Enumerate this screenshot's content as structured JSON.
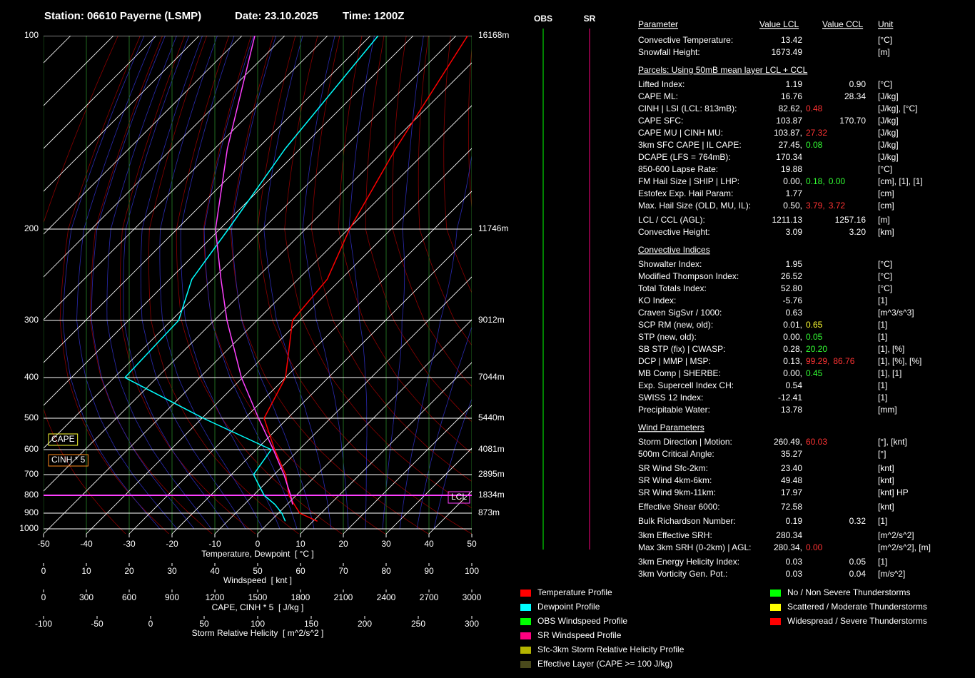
{
  "header": {
    "station": "Station: 06610 Payerne (LSMP)",
    "date": "Date: 23.10.2025",
    "time": "Time: 1200Z"
  },
  "chart_data": {
    "type": "skew-t",
    "xlabel": "Temperature, Dewpoint  [ °C ]",
    "xlim": [
      -50,
      50
    ],
    "xticks": [
      -50,
      -40,
      -30,
      -20,
      -10,
      0,
      10,
      20,
      30,
      40,
      50
    ],
    "ylim": [
      100,
      1000
    ],
    "yticks": [
      100,
      200,
      300,
      400,
      500,
      600,
      700,
      800,
      900,
      1000
    ],
    "height_labels": [
      "16168m",
      "11746m",
      "9012m",
      "7044m",
      "5440m",
      "4081m",
      "2895m",
      "1834m",
      "873m"
    ],
    "y": [
      950,
      900,
      850,
      800,
      700,
      600,
      500,
      400,
      300,
      250,
      200,
      150,
      100
    ],
    "series": [
      {
        "name": "Temperature Profile",
        "color": "#ff0000",
        "values": [
          11,
          5,
          1.7,
          -1.7,
          -7.3,
          -15.7,
          -25.5,
          -30,
          -41.7,
          -43.2,
          -49.7,
          -57.7,
          -67.3
        ]
      },
      {
        "name": "Dewpoint Profile",
        "color": "#00ffff",
        "values": [
          3.5,
          0.8,
          -2.8,
          -7.5,
          -14.8,
          -16.5,
          -39.7,
          -67.5,
          -68.3,
          -74.8,
          -78,
          -83.5,
          -88.2
        ]
      },
      {
        "color": "#ff40ff",
        "values": [
          null,
          null,
          1.3,
          -1.3,
          -7.7,
          -16,
          -26.8,
          -40.3,
          -57,
          -68,
          -81,
          -97,
          -117
        ]
      }
    ],
    "windspeed_axis": {
      "label": "Windspeed  [ knt ]",
      "xlim": [
        0,
        100
      ],
      "xticks": [
        0,
        10,
        20,
        30,
        40,
        50,
        60,
        70,
        80,
        90,
        100
      ]
    },
    "cape_axis": {
      "label": "CAPE, CINH * 5  [ J/kg ]",
      "xlim": [
        0,
        3000
      ],
      "xticks": [
        0,
        300,
        600,
        900,
        1200,
        1500,
        1800,
        2100,
        2400,
        2700,
        3000
      ]
    },
    "srh_axis": {
      "label": "Storm Relative Helicity  [ m^2/s^2 ]",
      "xlim": [
        -100,
        300
      ],
      "xticks": [
        -100,
        -50,
        0,
        50,
        100,
        150,
        200,
        250,
        300
      ]
    },
    "annotations": [
      "CAPE",
      "CINH * 5",
      "LCL"
    ],
    "wind_headings": [
      "OBS",
      "SR"
    ],
    "legend_items": [
      {
        "name": "OBS Windspeed Profile",
        "color": "#00ff00"
      },
      {
        "name": "SR Windspeed Profile",
        "color": "#ff0080"
      },
      {
        "name": "Sfc-3km Storm Relative Helicity Profile",
        "color": "#b4b400"
      },
      {
        "name": "Effective Layer (CAPE >= 100 J/kg)",
        "color": "#4a4a1c"
      }
    ],
    "severity_legend": [
      {
        "name": "No / Non Severe Thunderstorms",
        "color": "#00ff00"
      },
      {
        "name": "Scattered / Moderate Thunderstorms",
        "color": "#ffff00"
      },
      {
        "name": "Widespread / Severe Thunderstorms",
        "color": "#ff0000"
      }
    ]
  },
  "table": {
    "headers": [
      "Parameter",
      "Value LCL",
      "Value CCL",
      "Unit"
    ],
    "rows": [
      {
        "label": "Convective Temperature:",
        "lcl": [
          {
            "text": "13.42",
            "color": "#33ff33"
          }
        ],
        "unit": "[°C]"
      },
      {
        "label": "Snowfall Height:",
        "lcl": [
          {
            "text": "1673.49",
            "color": "#ffffff"
          }
        ],
        "unit": "[m]"
      },
      {
        "section": "Parcels: Using 50mB mean layer LCL + CCL"
      },
      {
        "label": "Lifted Index:",
        "lcl": [
          {
            "text": "1.19",
            "color": "#ffff33"
          }
        ],
        "ccl": {
          "text": "0.90",
          "color": "#ffff33"
        },
        "unit": "[°C]"
      },
      {
        "label": "CAPE ML:",
        "lcl": [
          {
            "text": "16.76",
            "color": "#33ff33"
          }
        ],
        "ccl": {
          "text": "28.34",
          "color": "#33ff33"
        },
        "unit": "[J/kg]"
      },
      {
        "label": "CINH | LSI (LCL: 813mB):",
        "lcl": [
          {
            "text": "82.62,",
            "color": "#ffff33"
          },
          {
            "text": "0.48",
            "color": "#ff3333"
          }
        ],
        "unit": "[J/kg], [°C]"
      },
      {
        "label": "CAPE SFC:",
        "lcl": [
          {
            "text": "103.87",
            "color": "#33ff33"
          }
        ],
        "ccl": {
          "text": "170.70",
          "color": "#33ff33"
        },
        "unit": "[J/kg]"
      },
      {
        "label": "CAPE MU | CINH MU:",
        "lcl": [
          {
            "text": "103.87,",
            "color": "#33ff33"
          },
          {
            "text": "27.32",
            "color": "#ff3333"
          }
        ],
        "unit": "[J/kg]"
      },
      {
        "label": "3km SFC CAPE | IL CAPE:",
        "lcl": [
          {
            "text": "27.45,",
            "color": "#ffff33"
          },
          {
            "text": "0.08",
            "color": "#33ff33"
          }
        ],
        "unit": "[J/kg]"
      },
      {
        "label": "DCAPE (LFS = 764mB):",
        "lcl": [
          {
            "text": "170.34",
            "color": "#33ff33"
          }
        ],
        "unit": "[J/kg]"
      },
      {
        "label": "850-600 Lapse Rate:",
        "lcl": [
          {
            "text": "19.88",
            "color": "#ff3333"
          }
        ],
        "unit": "[°C]"
      },
      {
        "label": "FM Hail Size | SHIP | LHP:",
        "lcl": [
          {
            "text": "0.00,",
            "color": "#33ff33"
          },
          {
            "text": "0.18,",
            "color": "#33ff33"
          },
          {
            "text": "0.00",
            "color": "#33ff33"
          }
        ],
        "unit": "[cm], [1], [1]"
      },
      {
        "label": "Estofex Exp. Hail Param:",
        "lcl": [
          {
            "text": "1.77",
            "color": "#ffff33"
          }
        ],
        "unit": "[cm]"
      },
      {
        "label": "Max. Hail Size (OLD, MU, IL):",
        "lcl": [
          {
            "text": "0.50,",
            "color": "#33ff33"
          },
          {
            "text": "3.79,",
            "color": "#ff3333"
          },
          {
            "text": "3.72",
            "color": "#ff3333"
          }
        ],
        "unit": "[cm]"
      },
      {
        "label": "LCL / CCL (AGL):",
        "lcl": [
          {
            "text": "1211.13",
            "color": "#ffff33"
          }
        ],
        "ccl": {
          "text": "1257.16",
          "color": "#ffff33"
        },
        "unit": "[m]"
      },
      {
        "label": "Convective Height:",
        "lcl": [
          {
            "text": "3.09",
            "color": "#ffff33"
          }
        ],
        "ccl": {
          "text": "3.20",
          "color": "#ffff33"
        },
        "unit": "[km]"
      },
      {
        "section": "Convective Indices"
      },
      {
        "label": "Showalter Index:",
        "lcl": [
          {
            "text": "1.95",
            "color": "#ffff33"
          }
        ],
        "unit": "[°C]"
      },
      {
        "label": "Modified Thompson Index:",
        "lcl": [
          {
            "text": "26.52",
            "color": "#33ff33"
          }
        ],
        "unit": "[°C]"
      },
      {
        "label": "Total Totals Index:",
        "lcl": [
          {
            "text": "52.80",
            "color": "#ff3333"
          }
        ],
        "unit": "[°C]"
      },
      {
        "label": "KO Index:",
        "lcl": [
          {
            "text": "-5.76",
            "color": "#33ff33"
          }
        ],
        "unit": "[1]"
      },
      {
        "label": "Craven SigSvr / 1000:",
        "lcl": [
          {
            "text": "0.63",
            "color": "#33ff33"
          }
        ],
        "unit": "[m^3/s^3]"
      },
      {
        "label": "SCP RM (new, old):",
        "lcl": [
          {
            "text": "0.01,",
            "color": "#33ff33"
          },
          {
            "text": "0.65",
            "color": "#ffff33"
          }
        ],
        "unit": "[1]"
      },
      {
        "label": "STP (new, old):",
        "lcl": [
          {
            "text": "0.00,",
            "color": "#33ff33"
          },
          {
            "text": "0.05",
            "color": "#33ff33"
          }
        ],
        "unit": "[1]"
      },
      {
        "label": "SB STP (fix) | CWASP:",
        "lcl": [
          {
            "text": "0.28,",
            "color": "#ff3333"
          },
          {
            "text": "20.20",
            "color": "#33ff33"
          }
        ],
        "unit": "[1], [%]"
      },
      {
        "label": "DCP | MMP | MSP:",
        "lcl": [
          {
            "text": "0.13,",
            "color": "#33ff33"
          },
          {
            "text": "99.29,",
            "color": "#ff3333"
          },
          {
            "text": "86.76",
            "color": "#ff3333"
          }
        ],
        "unit": "[1], [%], [%]"
      },
      {
        "label": "MB Comp | SHERBE:",
        "lcl": [
          {
            "text": "0.00,",
            "color": "#33ff33"
          },
          {
            "text": "0.45",
            "color": "#33ff33"
          }
        ],
        "unit": "[1], [1]"
      },
      {
        "label": "Exp. Supercell Index CH:",
        "lcl": [
          {
            "text": "0.54",
            "color": "#33ff33"
          }
        ],
        "unit": "[1]"
      },
      {
        "label": "SWISS 12 Index:",
        "lcl": [
          {
            "text": "-12.41",
            "color": "#ff3333"
          }
        ],
        "unit": "[1]"
      },
      {
        "label": "Precipitable Water:",
        "lcl": [
          {
            "text": "13.78",
            "color": "#33ff33"
          }
        ],
        "unit": "[mm]"
      },
      {
        "section": "Wind Parameters"
      },
      {
        "label": "Storm Direction | Motion:",
        "lcl": [
          {
            "text": "260.49,",
            "color": "#ffffff"
          },
          {
            "text": "60.03",
            "color": "#ff3333"
          }
        ],
        "unit": "[°], [knt]"
      },
      {
        "label": "500m Critical Angle:",
        "lcl": [
          {
            "text": "35.27",
            "color": "#33ff33"
          }
        ],
        "unit": "[°]"
      },
      {
        "label": "SR Wind Sfc-2km:",
        "lcl": [
          {
            "text": "23.40",
            "color": "#33ff33"
          }
        ],
        "unit": "[knt]"
      },
      {
        "label": "SR Wind 4km-6km:",
        "lcl": [
          {
            "text": "49.48",
            "color": "#33ff33"
          }
        ],
        "unit": "[knt]"
      },
      {
        "label": "SR Wind 9km-11km:",
        "lcl": [
          {
            "text": "17.97",
            "color": "#33ff33"
          }
        ],
        "unit": "[knt] HP"
      },
      {
        "label": "Effective Shear 6000:",
        "lcl": [
          {
            "text": "72.58",
            "color": "#ff3333"
          }
        ],
        "unit": "[knt]"
      },
      {
        "label": "Bulk Richardson Number:",
        "lcl": [
          {
            "text": "0.19",
            "color": "#33ff33"
          }
        ],
        "ccl": {
          "text": "0.32",
          "color": "#33ff33"
        },
        "unit": "[1]"
      },
      {
        "label": "3km Effective SRH:",
        "lcl": [
          {
            "text": "280.34",
            "color": "#ff3333"
          }
        ],
        "unit": "[m^2/s^2]"
      },
      {
        "label": "Max 3km SRH (0-2km) | AGL:",
        "lcl": [
          {
            "text": "280.34,",
            "color": "#ff3333"
          },
          {
            "text": "0.00",
            "color": "#ff3333"
          }
        ],
        "unit": "[m^2/s^2], [m]"
      },
      {
        "label": "3km Energy Helicity Index:",
        "lcl": [
          {
            "text": "0.03",
            "color": "#33ff33"
          }
        ],
        "ccl": {
          "text": "0.05",
          "color": "#33ff33"
        },
        "unit": "[1]"
      },
      {
        "label": "3km Vorticity Gen. Pot.:",
        "lcl": [
          {
            "text": "0.03",
            "color": "#33ff33"
          }
        ],
        "ccl": {
          "text": "0.04",
          "color": "#33ff33"
        },
        "unit": "[m/s^2]"
      }
    ]
  }
}
